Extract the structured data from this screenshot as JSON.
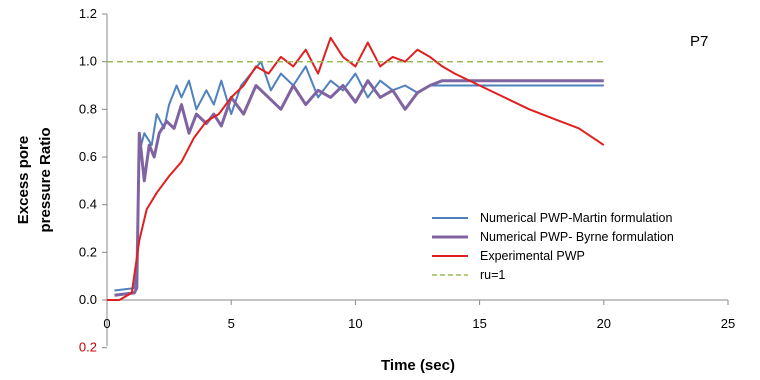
{
  "chart_data": {
    "type": "line",
    "title": "",
    "annotation": "P7",
    "xlabel": "Time (sec)",
    "ylabel_lines": [
      "Excess pore",
      "pressure Ratio"
    ],
    "xlim": [
      0,
      25
    ],
    "ylim": [
      0,
      1.2
    ],
    "x_ticks": [
      "0",
      "5",
      "10",
      "15",
      "20",
      "25"
    ],
    "y_ticks": [
      "0.0",
      "0.2",
      "0.4",
      "0.6",
      "0.8",
      "1.0",
      "1.2"
    ],
    "extra_tick": {
      "label": "0.2",
      "color": "#cc0000"
    },
    "grid": false,
    "legend_position": "bottom-right",
    "series": [
      {
        "name": "Numerical PWP-Martin formulation",
        "color": "#4f81bd",
        "dash": false,
        "x": [
          0.3,
          1.1,
          1.2,
          1.3,
          1.5,
          1.8,
          2.0,
          2.3,
          2.5,
          2.8,
          3.0,
          3.3,
          3.6,
          4.0,
          4.3,
          4.6,
          5.0,
          5.4,
          5.8,
          6.2,
          6.6,
          7.0,
          7.5,
          8.0,
          8.5,
          9.0,
          9.5,
          10.0,
          10.5,
          11.0,
          11.5,
          12.0,
          12.5,
          13.0,
          15.0,
          20.0
        ],
        "y": [
          0.04,
          0.05,
          0.12,
          0.62,
          0.7,
          0.65,
          0.78,
          0.72,
          0.82,
          0.9,
          0.85,
          0.92,
          0.8,
          0.88,
          0.82,
          0.92,
          0.78,
          0.9,
          0.95,
          1.0,
          0.88,
          0.95,
          0.9,
          0.98,
          0.85,
          0.92,
          0.88,
          0.95,
          0.85,
          0.92,
          0.88,
          0.9,
          0.87,
          0.9,
          0.9,
          0.9
        ]
      },
      {
        "name": "Numerical PWP- Byrne formulation",
        "color": "#8064a2",
        "dash": false,
        "x": [
          0.3,
          1.1,
          1.2,
          1.3,
          1.5,
          1.7,
          1.9,
          2.1,
          2.4,
          2.7,
          3.0,
          3.3,
          3.6,
          4.0,
          4.3,
          4.6,
          5.0,
          5.5,
          6.0,
          6.5,
          7.0,
          7.5,
          8.0,
          8.5,
          9.0,
          9.5,
          10.0,
          10.5,
          11.0,
          11.5,
          12.0,
          12.5,
          13.0,
          13.5,
          15.0,
          20.0
        ],
        "y": [
          0.02,
          0.03,
          0.05,
          0.7,
          0.5,
          0.65,
          0.6,
          0.7,
          0.75,
          0.72,
          0.82,
          0.7,
          0.78,
          0.74,
          0.78,
          0.73,
          0.85,
          0.78,
          0.9,
          0.85,
          0.8,
          0.9,
          0.82,
          0.88,
          0.85,
          0.9,
          0.83,
          0.92,
          0.85,
          0.88,
          0.8,
          0.87,
          0.9,
          0.92,
          0.92,
          0.92
        ]
      },
      {
        "name": "Experimental PWP",
        "color": "#e02020",
        "dash": false,
        "x": [
          0,
          0.5,
          1.0,
          1.3,
          1.6,
          2.0,
          2.5,
          3.0,
          3.5,
          4.0,
          4.5,
          5.0,
          5.5,
          6.0,
          6.5,
          7.0,
          7.5,
          8.0,
          8.5,
          9.0,
          9.5,
          10.0,
          10.5,
          11.0,
          11.5,
          12.0,
          12.5,
          13.0,
          13.5,
          14.0,
          15.0,
          16.0,
          17.0,
          18.0,
          19.0,
          20.0
        ],
        "y": [
          0.0,
          0.0,
          0.03,
          0.25,
          0.38,
          0.45,
          0.52,
          0.58,
          0.68,
          0.75,
          0.78,
          0.85,
          0.9,
          0.98,
          0.95,
          1.02,
          0.98,
          1.05,
          0.95,
          1.1,
          1.02,
          0.98,
          1.08,
          0.98,
          1.02,
          1.0,
          1.05,
          1.02,
          0.98,
          0.95,
          0.9,
          0.85,
          0.8,
          0.76,
          0.72,
          0.65
        ]
      },
      {
        "name": "ru=1",
        "color": "#9bbb59",
        "dash": true,
        "x": [
          0,
          20
        ],
        "y": [
          1.0,
          1.0
        ]
      }
    ]
  }
}
